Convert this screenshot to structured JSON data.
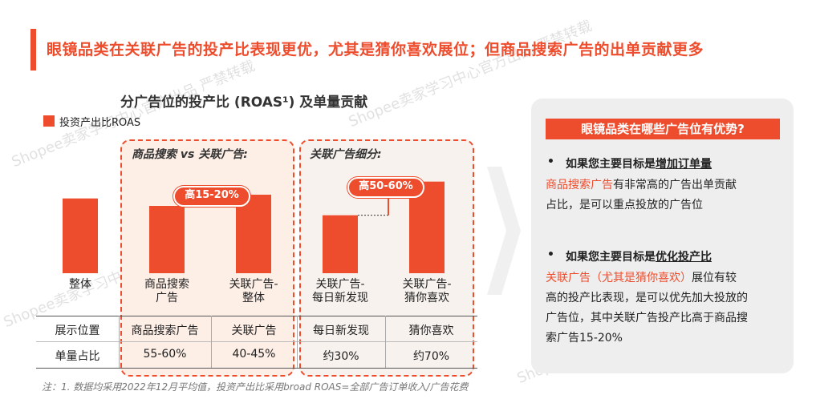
{
  "title": "眼镜品类在关联广告的投产比表现更优，尤其是猜你喜欢展位；但商品搜索广告的出单贡献更多",
  "chart_title": "分广告位的投产比 (ROAS¹) 及单量贡献",
  "legend": "投资产出比ROAS",
  "groups": {
    "left": "商品搜索 vs 关联广告:",
    "right": "关联广告细分:"
  },
  "callouts": {
    "left": "高15-20%",
    "right": "高50-60%"
  },
  "chart_data": {
    "type": "bar",
    "categories": [
      "整体",
      "商品搜索\n广告",
      "关联广告-\n整体",
      "关联广告-\n每日新发现",
      "关联广告-\n猜你喜欢"
    ],
    "category_lines": [
      [
        "整体"
      ],
      [
        "商品搜索",
        "广告"
      ],
      [
        "关联广告-",
        "整体"
      ],
      [
        "关联广告-",
        "每日新发现"
      ],
      [
        "关联广告-",
        "猜你喜欢"
      ]
    ],
    "values": [
      0.8,
      0.72,
      0.84,
      0.62,
      0.98
    ],
    "ylim": [
      0,
      1.2
    ],
    "grid": false,
    "color": "#ee4d2d"
  },
  "table": {
    "row1_header": "展示位置",
    "row1": [
      "商品搜索广告",
      "关联广告",
      "每日新发现",
      "猜你喜欢"
    ],
    "row2_header": "单量占比",
    "row2": [
      "55-60%",
      "40-45%",
      "约30%",
      "约70%"
    ]
  },
  "note": "注：1. 数据均采用2022年12月平均值，投资产出比采用broad ROAS=全部广告订单收入/广告花费",
  "panel": {
    "heading": "眼镜品类在哪些广告位有优势?",
    "b1_prefix": "如果您主要目标是",
    "b1_goal": "增加订单量",
    "b1_hl": "商品搜索广告",
    "b1_rest1": "有非常高的广告出单贡献",
    "b1_rest2": "占比，是可以重点投放的广告位",
    "b2_prefix": "如果您主要目标是",
    "b2_goal": "优化投产比",
    "b2_hl": "关联广告（尤其是猜你喜欢）",
    "b2_rest1": "展位有较",
    "b2_rest2": "高的投产比表现，是可以优先加大投放的",
    "b2_rest3": "广告位，其中关联广告投产比高于商品搜",
    "b2_rest4": "索广告15-20%",
    "bullet": "•"
  },
  "watermark": "Shopee卖家学习中心官方出品 严禁转载",
  "colors": {
    "accent": "#ee4d2d",
    "panel_bg": "#eeeeee",
    "group_bg": "#fdeee6"
  }
}
